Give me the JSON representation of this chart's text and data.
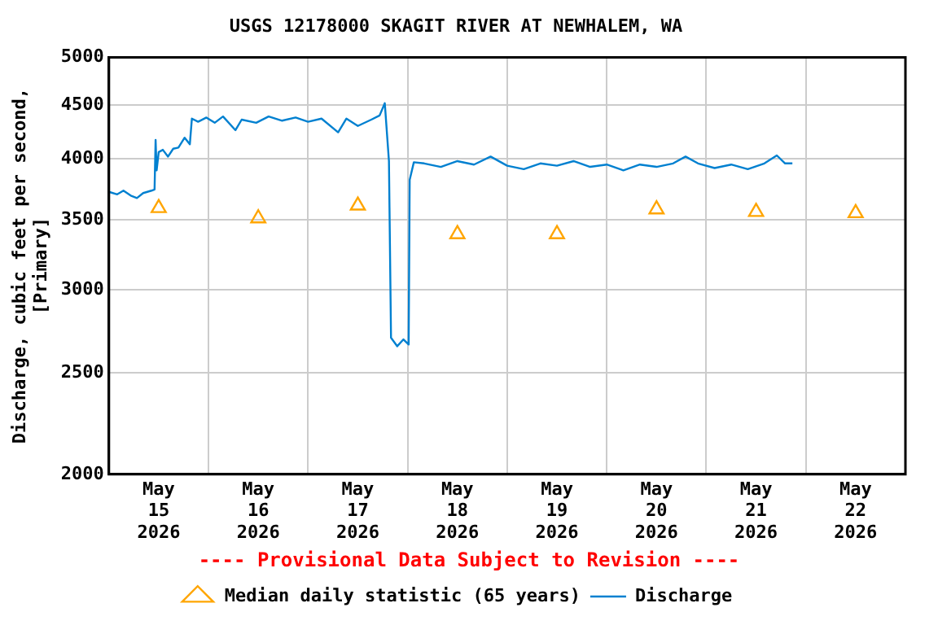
{
  "chart_data": {
    "type": "line",
    "title": "USGS 12178000 SKAGIT RIVER AT NEWHALEM, WA",
    "ylabel": "Discharge, cubic feet per second,\n[Primary]",
    "annotations": [
      "---- Provisional Data Subject to Revision ----"
    ],
    "log": "y",
    "grid": true,
    "legend": "bottom",
    "xlim": [
      "2026-05-15T00:00",
      "2026-05-23T00:00"
    ],
    "xticks": [
      {
        "value": "2026-05-15T12:00",
        "label": "May\n15\n2026"
      },
      {
        "value": "2026-05-16T00:00",
        "label": null
      },
      {
        "value": "2026-05-16T12:00",
        "label": "May\n16\n2026"
      },
      {
        "value": "2026-05-17T00:00",
        "label": null
      },
      {
        "value": "2026-05-17T12:00",
        "label": "May\n17\n2026"
      },
      {
        "value": "2026-05-18T00:00",
        "label": null
      },
      {
        "value": "2026-05-18T12:00",
        "label": "May\n18\n2026"
      },
      {
        "value": "2026-05-19T00:00",
        "label": null
      },
      {
        "value": "2026-05-19T12:00",
        "label": "May\n19\n2026"
      },
      {
        "value": "2026-05-20T00:00",
        "label": null
      },
      {
        "value": "2026-05-20T12:00",
        "label": "May\n20\n2026"
      },
      {
        "value": "2026-05-21T00:00",
        "label": null
      },
      {
        "value": "2026-05-21T12:00",
        "label": "May\n21\n2026"
      },
      {
        "value": "2026-05-22T00:00",
        "label": null
      },
      {
        "value": "2026-05-22T12:00",
        "label": "May\n22\n2026"
      }
    ],
    "ylim": [
      2000,
      5000
    ],
    "yticks": [
      2000,
      2500,
      3000,
      3500,
      4000,
      4500,
      5000
    ],
    "series": [
      {
        "name": "Median daily statistic (65 years)",
        "type": "scatter",
        "marker": "triangle",
        "color": "#ffa500",
        "x": [
          "2026-05-15T12:00",
          "2026-05-16T12:00",
          "2026-05-17T12:00",
          "2026-05-18T12:00",
          "2026-05-19T12:00",
          "2026-05-20T12:00",
          "2026-05-21T12:00",
          "2026-05-22T12:00"
        ],
        "values": [
          3590,
          3510,
          3610,
          3390,
          3390,
          3580,
          3560,
          3550
        ]
      },
      {
        "name": "Discharge",
        "marker": "none",
        "color": "#0080d0",
        "x": [
          "2026-05-15T00:00",
          "2026-05-15T02:00",
          "2026-05-15T03:30",
          "2026-05-15T05:15",
          "2026-05-15T06:45",
          "2026-05-15T08:15",
          "2026-05-15T10:15",
          "2026-05-15T11:00",
          "2026-05-15T11:15",
          "2026-05-15T11:30",
          "2026-05-15T12:00",
          "2026-05-15T13:00",
          "2026-05-15T14:15",
          "2026-05-15T15:30",
          "2026-05-15T16:45",
          "2026-05-15T18:15",
          "2026-05-15T19:30",
          "2026-05-15T20:00",
          "2026-05-15T21:30",
          "2026-05-15T23:30",
          "2026-05-16T01:30",
          "2026-05-16T03:30",
          "2026-05-16T06:30",
          "2026-05-16T08:00",
          "2026-05-16T11:30",
          "2026-05-16T14:30",
          "2026-05-16T17:45",
          "2026-05-16T21:00",
          "2026-05-17T00:00",
          "2026-05-17T03:15",
          "2026-05-17T07:15",
          "2026-05-17T09:15",
          "2026-05-17T12:00",
          "2026-05-17T15:15",
          "2026-05-17T17:15",
          "2026-05-17T18:30",
          "2026-05-17T19:30",
          "2026-05-17T20:00",
          "2026-05-17T21:30",
          "2026-05-17T23:00",
          "2026-05-18T00:15",
          "2026-05-18T00:30",
          "2026-05-18T01:30",
          "2026-05-18T04:00",
          "2026-05-18T08:00",
          "2026-05-18T12:00",
          "2026-05-18T16:00",
          "2026-05-18T20:00",
          "2026-05-19T00:00",
          "2026-05-19T04:00",
          "2026-05-19T08:00",
          "2026-05-19T12:00",
          "2026-05-19T16:00",
          "2026-05-19T20:00",
          "2026-05-20T00:00",
          "2026-05-20T04:00",
          "2026-05-20T08:00",
          "2026-05-20T12:00",
          "2026-05-20T16:00",
          "2026-05-20T19:00",
          "2026-05-20T22:00",
          "2026-05-21T02:00",
          "2026-05-21T06:00",
          "2026-05-21T10:00",
          "2026-05-21T14:00",
          "2026-05-21T17:00",
          "2026-05-21T19:00",
          "2026-05-21T20:45"
        ],
        "values": [
          3720,
          3700,
          3730,
          3690,
          3670,
          3710,
          3730,
          3740,
          4170,
          3900,
          4060,
          4080,
          4020,
          4090,
          4100,
          4190,
          4130,
          4370,
          4340,
          4380,
          4330,
          4390,
          4260,
          4360,
          4330,
          4390,
          4350,
          4380,
          4340,
          4370,
          4240,
          4370,
          4300,
          4360,
          4400,
          4520,
          3980,
          2700,
          2650,
          2690,
          2660,
          3820,
          3970,
          3960,
          3930,
          3980,
          3950,
          4020,
          3940,
          3910,
          3960,
          3940,
          3980,
          3930,
          3950,
          3900,
          3950,
          3930,
          3960,
          4020,
          3960,
          3920,
          3950,
          3910,
          3960,
          4030,
          3960,
          3960
        ]
      }
    ]
  }
}
